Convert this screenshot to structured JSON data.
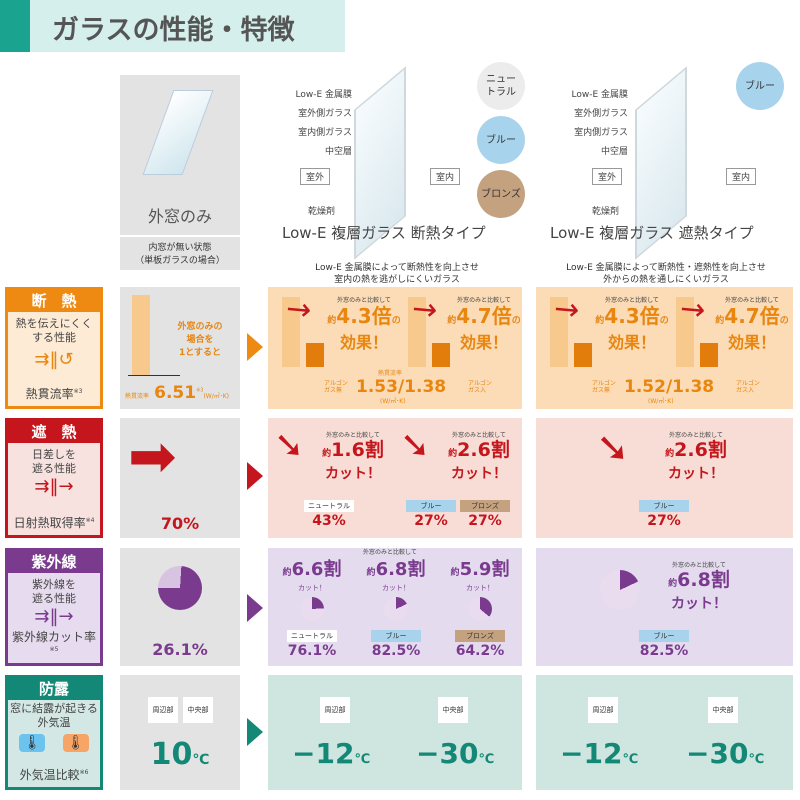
{
  "title": "ガラスの性能・特徴",
  "header": {
    "col_single": {
      "title": "外窓のみ",
      "note": "内窓が無い状態\n（単板ガラスの場合）"
    },
    "col_insulation": {
      "title": "Low-E 複層ガラス 断熱タイプ",
      "desc": "Low-E 金属膜によって断熱性を向上させ\n室内の熱を逃がしにくいガラス",
      "layers": [
        "Low-E 金属膜",
        "室外側ガラス",
        "室内側ガラス",
        "中空層",
        "乾燥剤"
      ],
      "outdoor": "室外",
      "indoor": "室内",
      "colors": [
        "ニュー\nトラル",
        "ブルー",
        "ブロンズ"
      ]
    },
    "col_heatshield": {
      "title": "Low-E 複層ガラス 遮熱タイプ",
      "desc": "Low-E 金属膜によって断熱性・遮熱性を向上させ\n外からの熱を通しにくいガラス",
      "layers": [
        "Low-E 金属膜",
        "室外側ガラス",
        "室内側ガラス",
        "中空層",
        "乾燥剤"
      ],
      "outdoor": "室外",
      "indoor": "室内",
      "colors": [
        "ブルー"
      ]
    }
  },
  "rows": {
    "insulation": {
      "heading": "断　熱",
      "desc": "熱を伝えにくく\nする性能",
      "foot": "熱貫流率",
      "note": "※3",
      "color": "#ee8a12",
      "single": {
        "caption": "外窓のみの\n場合を\n1とすると",
        "prefix": "熱貫流率",
        "value": "6.51",
        "note": "※3",
        "unit": "(W/㎡･K)"
      },
      "ins": {
        "compare": "外窓のみと比較して",
        "left": "4.3倍",
        "right": "4.7倍",
        "approx": "約",
        "suffix": "の",
        "effect": "効果！",
        "label": "熱貫流率",
        "air": "アルゴン\nガス無",
        "argon": "アルゴン\nガス入",
        "value": "1.53/1.38",
        "unit": "(W/㎡･K)"
      },
      "heat": {
        "compare": "外窓のみと比較して",
        "left": "4.3倍",
        "right": "4.7倍",
        "approx": "約",
        "suffix": "の",
        "effect": "効果！",
        "air": "アルゴン\nガス無",
        "argon": "アルゴン\nガス入",
        "value": "1.52/1.38",
        "unit": "(W/㎡･K)"
      }
    },
    "solar": {
      "heading": "遮　熱",
      "desc": "日差しを\n遮る性能",
      "foot": "日射熱取得率",
      "note": "※4",
      "color": "#c4161c",
      "single": {
        "value": "70%"
      },
      "ins": {
        "compare": "外窓のみと比較して",
        "left": "1.6割",
        "right": "2.6割",
        "approx": "約",
        "cut": "カット！",
        "values": [
          {
            "chip": "ニュートラル",
            "value": "43%"
          },
          {
            "chip": "ブルー",
            "value": "27%"
          },
          {
            "chip": "ブロンズ",
            "value": "27%"
          }
        ]
      },
      "heat": {
        "compare": "外窓のみと比較して",
        "right": "2.6割",
        "approx": "約",
        "cut": "カット！",
        "values": [
          {
            "chip": "ブルー",
            "value": "27%"
          }
        ]
      }
    },
    "uv": {
      "heading": "紫外線",
      "desc": "紫外線を\n遮る性能",
      "foot": "紫外線カット率",
      "note": "※5",
      "color": "#7a3b8f",
      "single": {
        "value": "26.1%"
      },
      "ins": {
        "compare": "外窓のみと比較して",
        "approx": "約",
        "cut": "カット！",
        "items": [
          {
            "big": "6.6割",
            "chip": "ニュートラル",
            "value": "76.1%"
          },
          {
            "big": "6.8割",
            "chip": "ブルー",
            "value": "82.5%"
          },
          {
            "big": "5.9割",
            "chip": "ブロンズ",
            "value": "64.2%"
          }
        ]
      },
      "heat": {
        "compare": "外窓のみと比較して",
        "approx": "約",
        "big": "6.8割",
        "cut": "カット！",
        "chip": "ブルー",
        "value": "82.5%"
      }
    },
    "dew": {
      "heading": "防露",
      "desc": "窓に結露が起きる\n外気温",
      "foot": "外気温比較",
      "note": "※6",
      "color": "#138876",
      "single": {
        "edge": "周辺部",
        "center": "中央部",
        "value": "10",
        "unit": "℃"
      },
      "ins": {
        "edge": "周辺部",
        "center": "中央部",
        "edge_value": "−12",
        "center_value": "−30",
        "unit": "℃"
      },
      "heat": {
        "edge": "周辺部",
        "center": "中央部",
        "edge_value": "−12",
        "center_value": "−30",
        "unit": "℃"
      }
    }
  }
}
